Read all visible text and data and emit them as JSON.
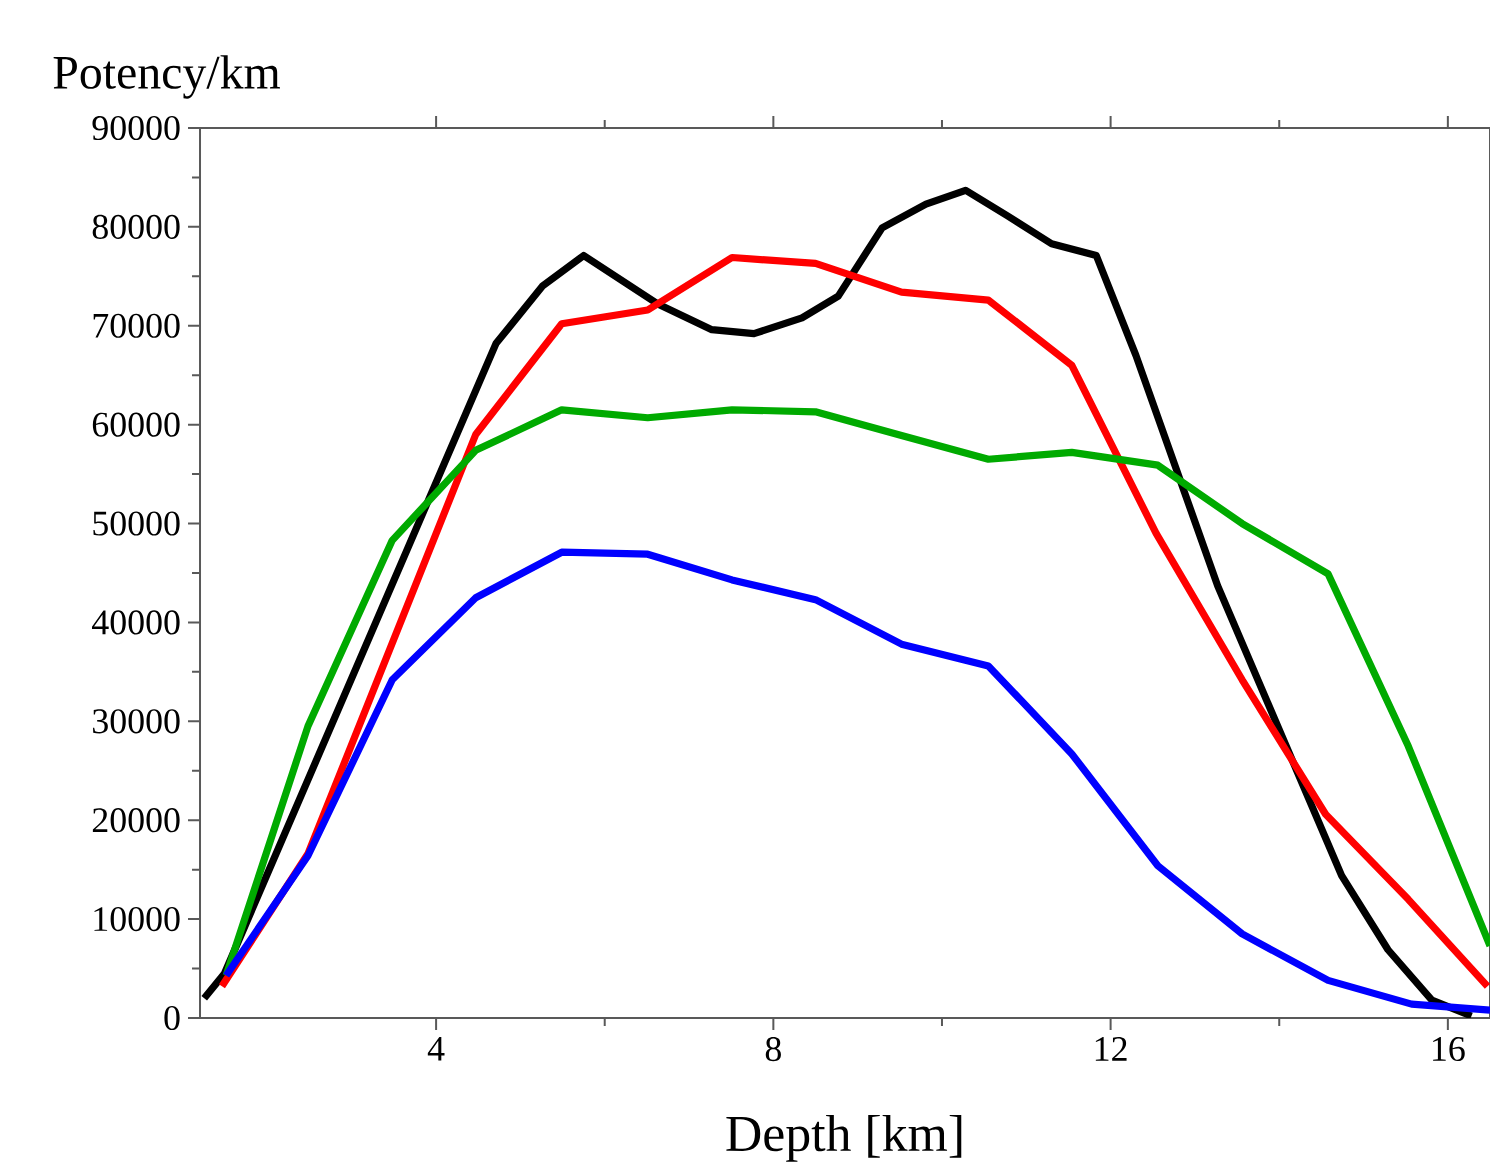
{
  "chart_data": {
    "type": "line",
    "xlabel": "Depth [km]",
    "ylabel": "Potency/km",
    "xlim": [
      1.2,
      16.5
    ],
    "ylim": [
      0,
      90000
    ],
    "xticks": [
      4,
      8,
      12,
      16
    ],
    "yticks": [
      0,
      10000,
      20000,
      30000,
      40000,
      50000,
      60000,
      70000,
      80000,
      90000
    ],
    "marker": "none",
    "line_style": "solid",
    "series": [
      {
        "color": "#000000",
        "x": [
          1.25,
          1.49,
          4.71,
          5.26,
          5.75,
          6.63,
          7.27,
          7.77,
          8.34,
          8.77,
          9.29,
          9.81,
          10.28,
          10.78,
          11.3,
          11.83,
          12.3,
          13.27,
          14.74,
          15.29,
          15.81,
          16.28
        ],
        "values": [
          2000,
          4500,
          68200,
          74000,
          77100,
          72200,
          69600,
          69200,
          70800,
          73000,
          79900,
          82300,
          83700,
          81100,
          78300,
          77100,
          67000,
          43700,
          14400,
          6900,
          1800,
          200
        ]
      },
      {
        "color": "#ff0000",
        "x": [
          1.46,
          2.48,
          4.47,
          5.49,
          6.51,
          7.51,
          8.5,
          9.52,
          10.55,
          11.54,
          12.54,
          13.56,
          14.55,
          15.53,
          16.47
        ],
        "values": [
          3200,
          16600,
          59000,
          70200,
          71600,
          76900,
          76300,
          73400,
          72600,
          66000,
          49000,
          34200,
          20600,
          12000,
          3200
        ]
      },
      {
        "color": "#00aa00",
        "x": [
          1.51,
          2.48,
          3.48,
          4.47,
          5.49,
          6.51,
          7.51,
          8.5,
          9.52,
          10.55,
          11.54,
          12.56,
          13.56,
          14.58,
          15.53,
          16.5
        ],
        "values": [
          4300,
          29500,
          48300,
          57400,
          61500,
          60700,
          61500,
          61300,
          58900,
          56500,
          57200,
          55900,
          50000,
          44900,
          27500,
          7300
        ]
      },
      {
        "color": "#0000ff",
        "x": [
          1.51,
          2.48,
          3.48,
          4.47,
          5.49,
          6.51,
          7.51,
          8.5,
          9.52,
          10.55,
          11.54,
          12.56,
          13.56,
          14.58,
          15.57,
          16.5
        ],
        "values": [
          4300,
          16400,
          34200,
          42500,
          47100,
          46900,
          44300,
          42300,
          37800,
          35600,
          26700,
          15400,
          8500,
          3800,
          1400,
          800
        ]
      }
    ]
  }
}
